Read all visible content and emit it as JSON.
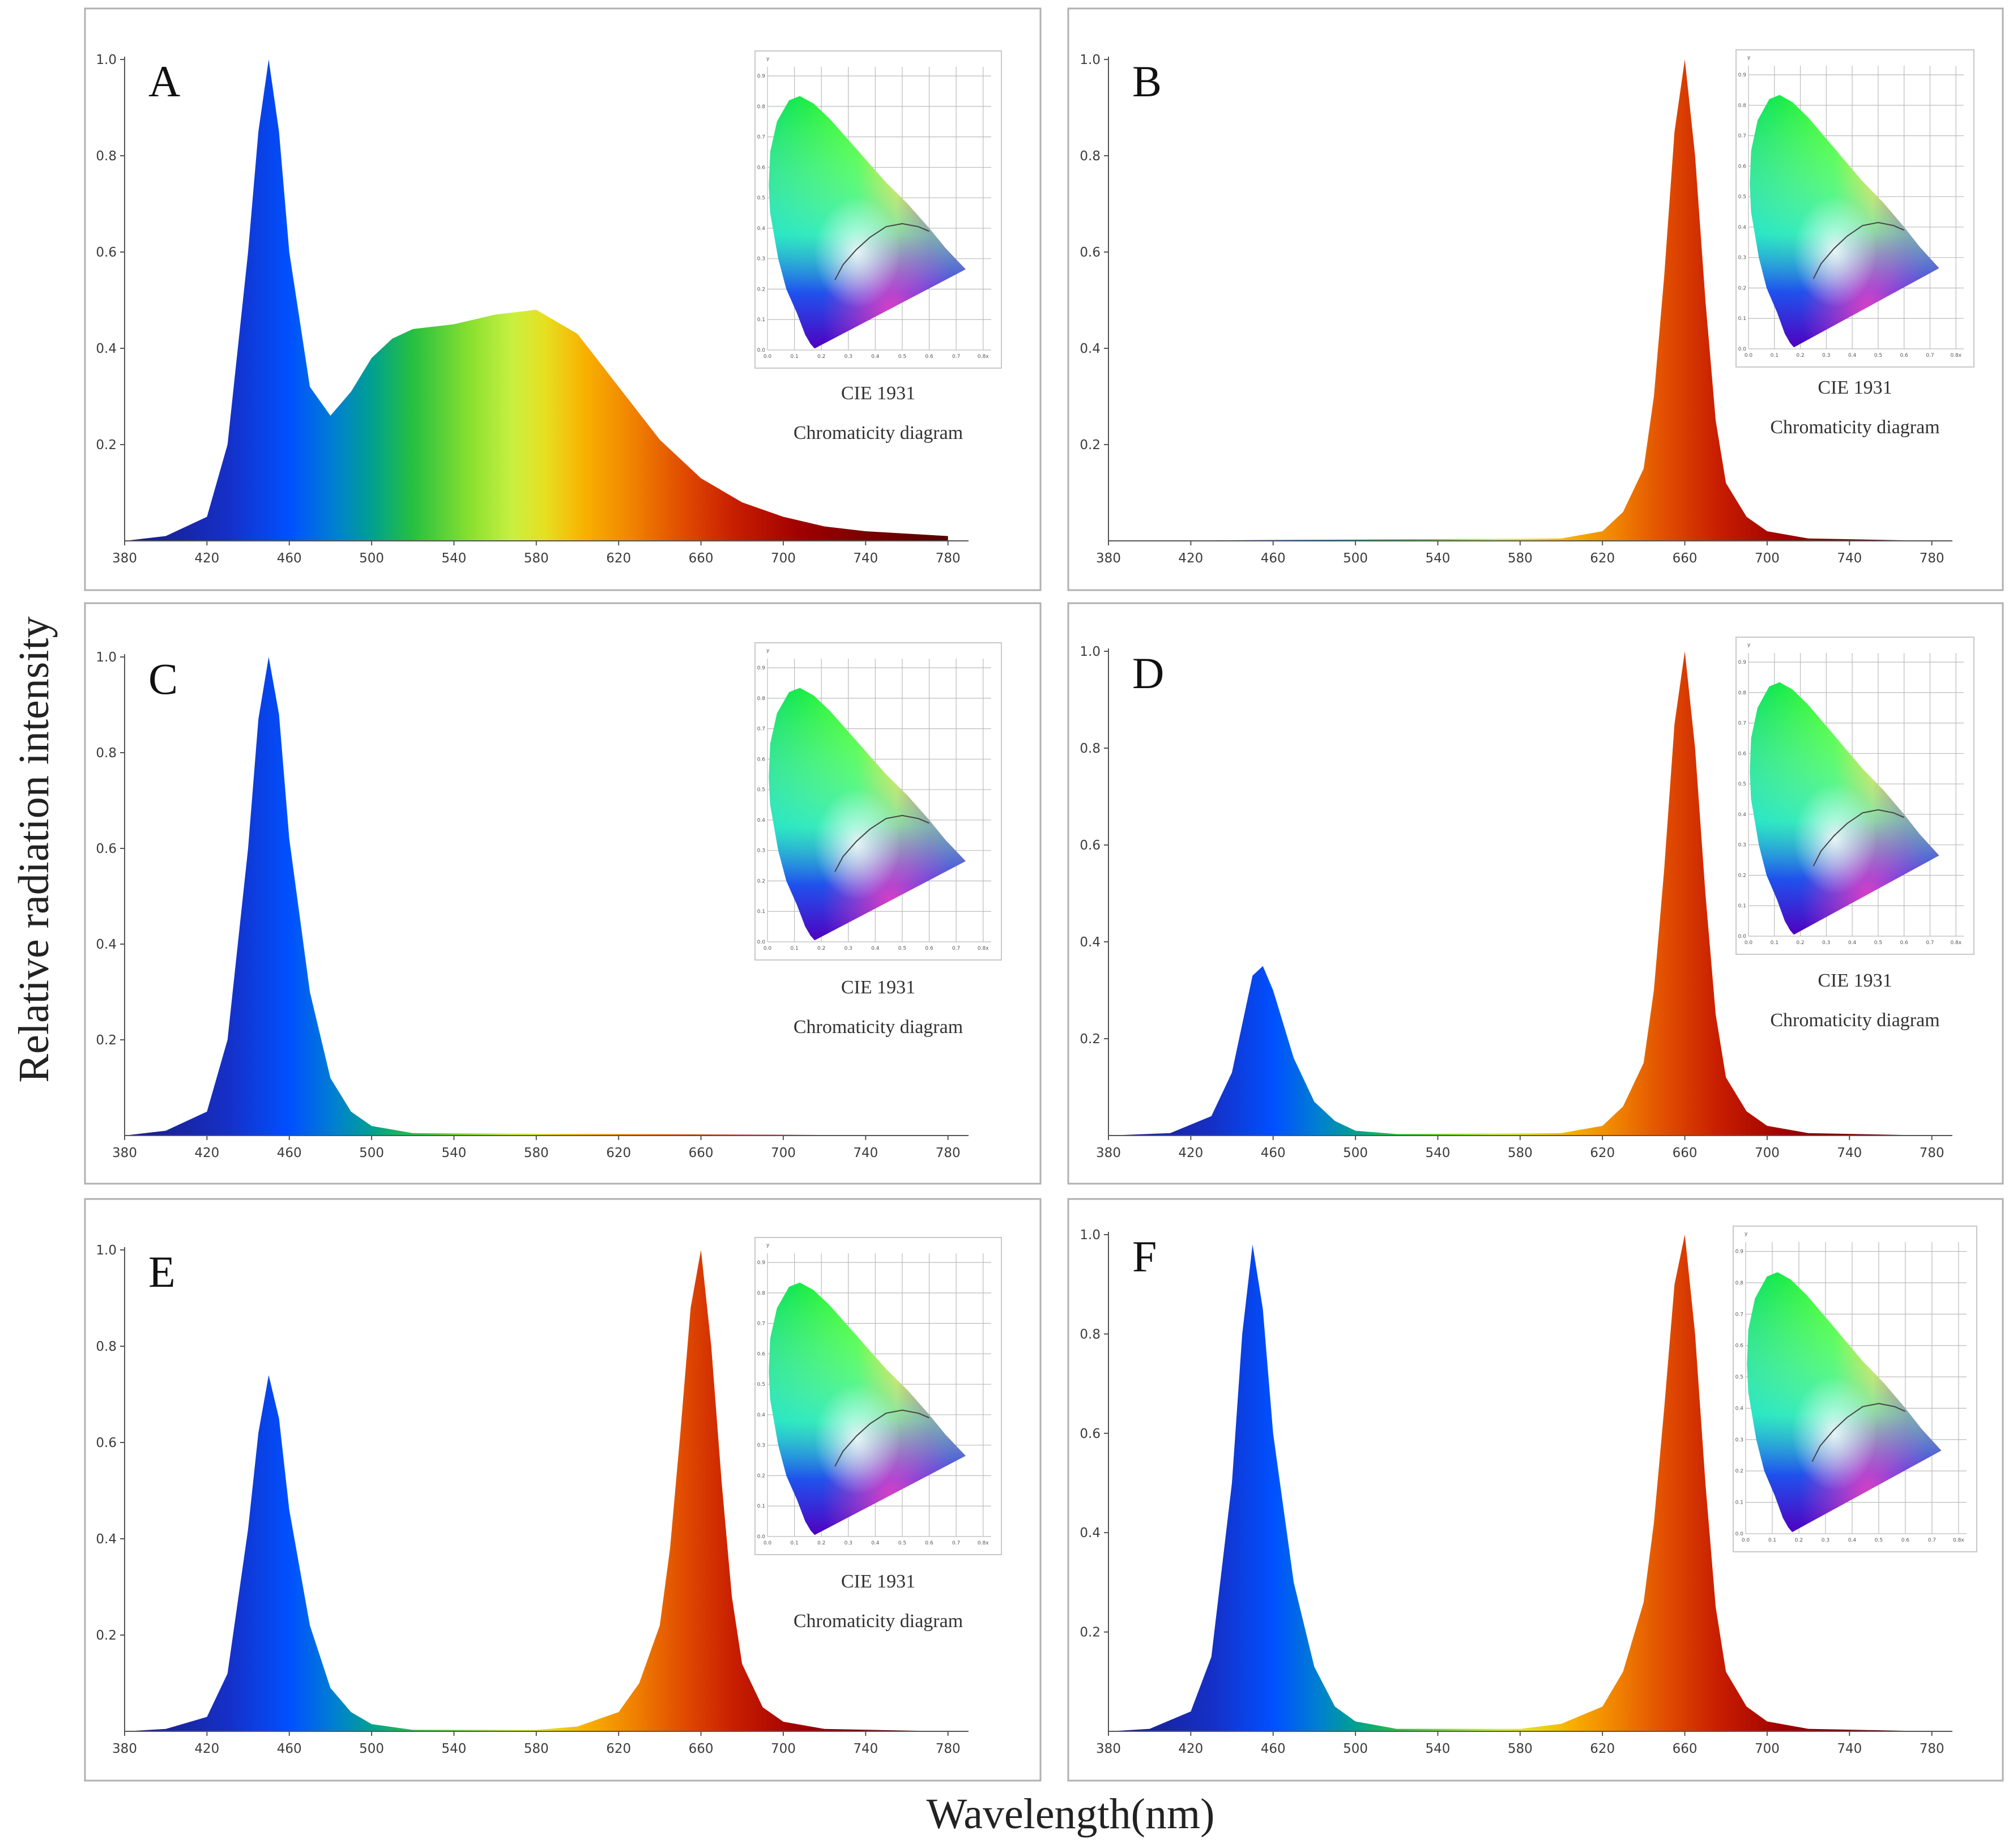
{
  "figure": {
    "ylabel": "Relative radiation intensity",
    "xlabel": "Wavelength(nm)"
  },
  "inset": {
    "caption_line1": "CIE 1931",
    "caption_line2": "Chromaticity diagram",
    "x_ticks": [
      "0.0",
      "0.1",
      "0.2",
      "0.3",
      "0.4",
      "0.5",
      "0.6",
      "0.7",
      "0.8x"
    ],
    "y_ticks": [
      "0.0",
      "0.1",
      "0.2",
      "0.3",
      "0.4",
      "0.5",
      "0.6",
      "0.7",
      "0.8",
      "0.9"
    ],
    "y_axis_label": "y"
  },
  "chart_data": [
    {
      "type": "area",
      "panel": "A",
      "title": "A",
      "x_range": [
        380,
        790
      ],
      "ylim": [
        0,
        1.0
      ],
      "x_ticks": [
        380,
        420,
        460,
        500,
        540,
        580,
        620,
        660,
        700,
        740,
        780
      ],
      "y_ticks": [
        "0.2",
        "0.4",
        "0.6",
        "0.8",
        "1.0"
      ],
      "has_caption": true,
      "x": [
        380,
        400,
        420,
        430,
        440,
        445,
        450,
        455,
        460,
        470,
        480,
        490,
        500,
        510,
        520,
        540,
        560,
        580,
        600,
        620,
        640,
        660,
        680,
        700,
        720,
        740,
        760,
        780
      ],
      "y": [
        0.0,
        0.01,
        0.05,
        0.2,
        0.6,
        0.85,
        1.0,
        0.85,
        0.6,
        0.32,
        0.26,
        0.31,
        0.38,
        0.42,
        0.44,
        0.45,
        0.47,
        0.48,
        0.43,
        0.32,
        0.21,
        0.13,
        0.08,
        0.05,
        0.03,
        0.02,
        0.015,
        0.01
      ]
    },
    {
      "type": "area",
      "panel": "B",
      "title": "B",
      "x_range": [
        380,
        790
      ],
      "ylim": [
        0,
        1.0
      ],
      "x_ticks": [
        380,
        420,
        460,
        500,
        540,
        580,
        620,
        660,
        700,
        740,
        780
      ],
      "y_ticks": [
        "0.2",
        "0.4",
        "0.6",
        "0.8",
        "1.0"
      ],
      "has_caption": true,
      "x": [
        380,
        600,
        620,
        630,
        640,
        645,
        650,
        655,
        660,
        665,
        670,
        675,
        680,
        690,
        700,
        720,
        780
      ],
      "y": [
        0.0,
        0.005,
        0.02,
        0.06,
        0.15,
        0.3,
        0.55,
        0.85,
        1.0,
        0.8,
        0.5,
        0.25,
        0.12,
        0.05,
        0.02,
        0.005,
        0.0
      ]
    },
    {
      "type": "area",
      "panel": "C",
      "title": "C",
      "x_range": [
        380,
        790
      ],
      "ylim": [
        0,
        1.0
      ],
      "x_ticks": [
        380,
        420,
        460,
        500,
        540,
        580,
        620,
        660,
        700,
        740,
        780
      ],
      "y_ticks": [
        "0.2",
        "0.4",
        "0.6",
        "0.8",
        "1.0"
      ],
      "has_caption": true,
      "x": [
        380,
        400,
        420,
        430,
        440,
        445,
        450,
        455,
        460,
        470,
        480,
        490,
        500,
        520,
        780
      ],
      "y": [
        0.0,
        0.01,
        0.05,
        0.2,
        0.6,
        0.87,
        1.0,
        0.88,
        0.62,
        0.3,
        0.12,
        0.05,
        0.02,
        0.005,
        0.0
      ]
    },
    {
      "type": "area",
      "panel": "D",
      "title": "D",
      "x_range": [
        380,
        790
      ],
      "ylim": [
        0,
        1.0
      ],
      "x_ticks": [
        380,
        420,
        460,
        500,
        540,
        580,
        620,
        660,
        700,
        740,
        780
      ],
      "y_ticks": [
        "0.2",
        "0.4",
        "0.6",
        "0.8",
        "1.0"
      ],
      "has_caption": true,
      "x": [
        380,
        410,
        430,
        440,
        445,
        450,
        455,
        460,
        470,
        480,
        490,
        500,
        520,
        600,
        620,
        630,
        640,
        645,
        650,
        655,
        660,
        665,
        670,
        675,
        680,
        690,
        700,
        720,
        780
      ],
      "y": [
        0.0,
        0.005,
        0.04,
        0.13,
        0.23,
        0.33,
        0.35,
        0.3,
        0.16,
        0.07,
        0.03,
        0.01,
        0.003,
        0.005,
        0.02,
        0.06,
        0.15,
        0.3,
        0.55,
        0.85,
        1.0,
        0.8,
        0.5,
        0.25,
        0.12,
        0.05,
        0.02,
        0.005,
        0.0
      ]
    },
    {
      "type": "area",
      "panel": "E",
      "title": "E",
      "x_range": [
        380,
        790
      ],
      "ylim": [
        0,
        1.0
      ],
      "x_ticks": [
        380,
        420,
        460,
        500,
        540,
        580,
        620,
        660,
        700,
        740,
        780
      ],
      "y_ticks": [
        "0.2",
        "0.4",
        "0.6",
        "0.8",
        "1.0"
      ],
      "has_caption": true,
      "x": [
        380,
        400,
        420,
        430,
        440,
        445,
        450,
        455,
        460,
        470,
        480,
        490,
        500,
        520,
        580,
        600,
        620,
        630,
        640,
        645,
        650,
        655,
        660,
        665,
        670,
        675,
        680,
        690,
        700,
        720,
        780
      ],
      "y": [
        0.0,
        0.005,
        0.03,
        0.12,
        0.42,
        0.62,
        0.74,
        0.65,
        0.46,
        0.22,
        0.09,
        0.04,
        0.015,
        0.003,
        0.003,
        0.01,
        0.04,
        0.1,
        0.22,
        0.38,
        0.62,
        0.88,
        1.0,
        0.8,
        0.52,
        0.28,
        0.14,
        0.05,
        0.02,
        0.005,
        0.0
      ]
    },
    {
      "type": "area",
      "panel": "F",
      "title": "F",
      "x_range": [
        380,
        790
      ],
      "ylim": [
        0,
        1.0
      ],
      "x_ticks": [
        380,
        420,
        460,
        500,
        540,
        580,
        620,
        660,
        700,
        740,
        780
      ],
      "y_ticks": [
        "0.2",
        "0.4",
        "0.6",
        "0.8",
        "1.0"
      ],
      "has_caption": false,
      "x": [
        380,
        400,
        420,
        430,
        440,
        445,
        450,
        455,
        460,
        470,
        480,
        490,
        500,
        520,
        580,
        600,
        620,
        630,
        640,
        645,
        650,
        655,
        660,
        665,
        670,
        675,
        680,
        690,
        700,
        720,
        780
      ],
      "y": [
        0.0,
        0.005,
        0.04,
        0.15,
        0.5,
        0.8,
        0.98,
        0.85,
        0.6,
        0.3,
        0.13,
        0.05,
        0.02,
        0.005,
        0.005,
        0.015,
        0.05,
        0.12,
        0.26,
        0.42,
        0.65,
        0.9,
        1.0,
        0.8,
        0.5,
        0.25,
        0.12,
        0.05,
        0.02,
        0.005,
        0.0
      ]
    }
  ]
}
